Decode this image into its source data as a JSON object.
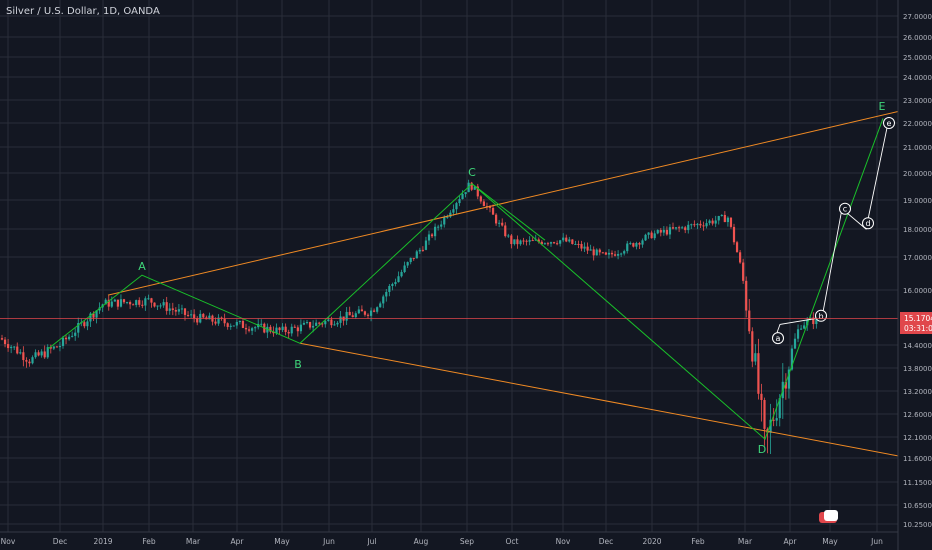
{
  "header": {
    "symbol_title": "Silver / U.S. Dollar, 1D, OANDA"
  },
  "colors": {
    "background": "#131722",
    "grid": "#2a2e39",
    "axis_text": "#b2b5be",
    "candle_up": "#26a69a",
    "candle_down": "#ef5350",
    "wave_line": "#19c02a",
    "wave_label": "#3fd67a",
    "channel_line": "#f08a24",
    "price_line": "#e0474c",
    "projection_line": "#ffffff"
  },
  "chart_data": {
    "type": "candlestick",
    "title": "Silver / U.S. Dollar, 1D, OANDA",
    "x_ticks": [
      "Nov",
      "Dec",
      "2019",
      "Feb",
      "Mar",
      "Apr",
      "May",
      "Jun",
      "Jul",
      "Aug",
      "Sep",
      "Oct",
      "Nov",
      "Dec",
      "2020",
      "Feb",
      "Mar",
      "Apr",
      "May",
      "Jun"
    ],
    "y_ticks": [
      "27.00000",
      "26.00000",
      "25.00000",
      "24.00000",
      "23.00000",
      "22.00000",
      "21.00000",
      "20.00000",
      "19.00000",
      "18.00000",
      "17.00000",
      "16.00000",
      "14.40000",
      "13.80000",
      "13.20000",
      "12.60000",
      "12.10000",
      "11.60000",
      "11.15000",
      "10.65000",
      "10.25000"
    ],
    "ylim": [
      10.25,
      27.0
    ],
    "current_price": {
      "price": "15.17042",
      "countdown": "03:31:09"
    },
    "price_path": [
      {
        "t": "Oct 2018",
        "close": 14.6
      },
      {
        "t": "Nov 2018",
        "close": 14.0
      },
      {
        "t": "Dec 2018",
        "close": 14.4
      },
      {
        "t": "Jan 2019",
        "close": 15.6
      },
      {
        "t": "Feb 2019",
        "close": 15.7
      },
      {
        "t": "Mar 2019",
        "close": 15.2
      },
      {
        "t": "Apr 2019",
        "close": 15.0
      },
      {
        "t": "May 2019",
        "close": 14.8
      },
      {
        "t": "Jun 2019",
        "close": 15.1
      },
      {
        "t": "Jul 2019",
        "close": 15.4
      },
      {
        "t": "Aug 2019",
        "close": 17.3
      },
      {
        "t": "Sep 2019",
        "close": 19.6
      },
      {
        "t": "Oct 2019",
        "close": 17.5
      },
      {
        "t": "Nov 2019",
        "close": 17.6
      },
      {
        "t": "Dec 2019",
        "close": 17.0
      },
      {
        "t": "Jan 2020",
        "close": 17.8
      },
      {
        "t": "Feb 2020",
        "close": 18.4
      },
      {
        "t": "Mar 2020",
        "close": 16.5
      },
      {
        "t": "Mar 2020",
        "close": 11.8
      },
      {
        "t": "Apr 2020",
        "close": 15.0
      },
      {
        "t": "Apr 2020",
        "close": 15.2
      }
    ],
    "wave_points": [
      {
        "label": "A",
        "t": "Jan 2019",
        "price": 16.4
      },
      {
        "label": "B",
        "t": "May 2019",
        "price": 14.5
      },
      {
        "label": "C",
        "t": "Sep 2019",
        "price": 19.6
      },
      {
        "label": "D",
        "t": "Mar 2020",
        "price": 11.9
      },
      {
        "label": "E",
        "t": "Jun 2020",
        "price": 22.2
      }
    ],
    "projection_points": [
      {
        "label": "a",
        "price": 14.6
      },
      {
        "label": "b",
        "price": 15.2
      },
      {
        "label": "c",
        "price": 18.7
      },
      {
        "label": "d",
        "price": 18.2
      },
      {
        "label": "e",
        "price": 22.0
      }
    ],
    "channel": {
      "upper": "from A up through C toward E",
      "lower": "from B down through D"
    }
  }
}
